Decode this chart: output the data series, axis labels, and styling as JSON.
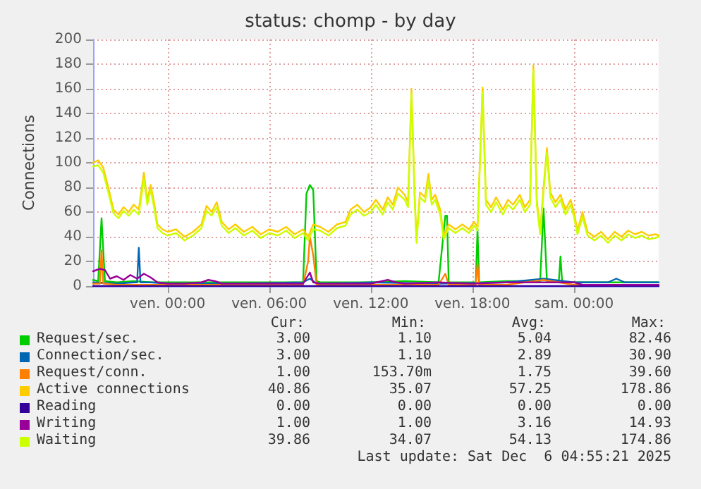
{
  "chart_data": {
    "type": "line",
    "title": "status: chomp - by day",
    "ylabel": "Connections",
    "xlim": [
      "2025-12-04T19:36",
      "2025-12-06T05:00"
    ],
    "xticks": [
      {
        "value": "2025-12-05T00:00",
        "label": "ven. 00:00"
      },
      {
        "value": "2025-12-05T06:00",
        "label": "ven. 06:00"
      },
      {
        "value": "2025-12-05T12:00",
        "label": "ven. 12:00"
      },
      {
        "value": "2025-12-05T18:00",
        "label": "ven. 18:00"
      },
      {
        "value": "2025-12-06T00:00",
        "label": "sam. 00:00"
      }
    ],
    "ylim": [
      0,
      200
    ],
    "yticks": [
      0,
      20,
      40,
      60,
      80,
      100,
      120,
      140,
      160,
      180,
      200
    ],
    "grid": true,
    "legend": "bottom",
    "x": [
      "2025-12-04T19:36",
      "2025-12-04T19:54",
      "2025-12-04T20:12",
      "2025-12-04T20:30",
      "2025-12-04T20:48",
      "2025-12-04T21:06",
      "2025-12-04T21:24",
      "2025-12-04T21:42",
      "2025-12-04T22:00",
      "2025-12-04T22:18",
      "2025-12-04T22:36",
      "2025-12-04T22:48",
      "2025-12-04T23:00",
      "2025-12-04T23:12",
      "2025-12-04T23:24",
      "2025-12-04T23:42",
      "2025-12-05T00:00",
      "2025-12-05T00:30",
      "2025-12-05T01:00",
      "2025-12-05T01:30",
      "2025-12-05T02:00",
      "2025-12-05T02:18",
      "2025-12-05T02:36",
      "2025-12-05T02:54",
      "2025-12-05T03:12",
      "2025-12-05T03:36",
      "2025-12-05T04:00",
      "2025-12-05T04:30",
      "2025-12-05T05:00",
      "2025-12-05T05:30",
      "2025-12-05T06:00",
      "2025-12-05T06:30",
      "2025-12-05T07:00",
      "2025-12-05T07:30",
      "2025-12-05T08:00",
      "2025-12-05T08:18",
      "2025-12-05T08:36",
      "2025-12-05T09:00",
      "2025-12-05T09:30",
      "2025-12-05T10:00",
      "2025-12-05T10:30",
      "2025-12-05T10:48",
      "2025-12-05T11:12",
      "2025-12-05T11:36",
      "2025-12-05T12:00",
      "2025-12-05T12:18",
      "2025-12-05T12:42",
      "2025-12-05T13:00",
      "2025-12-05T13:18",
      "2025-12-05T13:36",
      "2025-12-05T14:00",
      "2025-12-05T14:12",
      "2025-12-05T14:24",
      "2025-12-05T14:36",
      "2025-12-05T14:42",
      "2025-12-05T14:54",
      "2025-12-05T15:12",
      "2025-12-05T15:24",
      "2025-12-05T15:36",
      "2025-12-05T15:48",
      "2025-12-05T16:06",
      "2025-12-05T16:18",
      "2025-12-05T16:36",
      "2025-12-05T17:00",
      "2025-12-05T17:24",
      "2025-12-05T17:48",
      "2025-12-05T18:06",
      "2025-12-05T18:18",
      "2025-12-05T18:36",
      "2025-12-05T18:48",
      "2025-12-05T19:06",
      "2025-12-05T19:24",
      "2025-12-05T19:48",
      "2025-12-05T20:06",
      "2025-12-05T20:24",
      "2025-12-05T20:48",
      "2025-12-05T21:06",
      "2025-12-05T21:24",
      "2025-12-05T21:36",
      "2025-12-05T21:48",
      "2025-12-05T22:00",
      "2025-12-05T22:12",
      "2025-12-05T22:24",
      "2025-12-05T22:36",
      "2025-12-05T22:54",
      "2025-12-05T23:12",
      "2025-12-05T23:30",
      "2025-12-05T23:48",
      "2025-12-06T00:00",
      "2025-12-06T00:12",
      "2025-12-06T00:30",
      "2025-12-06T00:48",
      "2025-12-06T01:12",
      "2025-12-06T01:36",
      "2025-12-06T02:00",
      "2025-12-06T02:24",
      "2025-12-06T02:48",
      "2025-12-06T03:12",
      "2025-12-06T03:36",
      "2025-12-06T04:00",
      "2025-12-06T04:24",
      "2025-12-06T04:48",
      "2025-12-06T05:00"
    ],
    "series": [
      {
        "name": "Request/sec.",
        "color": "#00cc00",
        "x": [
          "2025-12-04T19:36",
          "2025-12-04T19:54",
          "2025-12-04T20:06",
          "2025-12-04T20:18",
          "2025-12-04T21:00",
          "2025-12-04T22:00",
          "2025-12-04T23:00",
          "2025-12-05T00:00",
          "2025-12-05T02:00",
          "2025-12-05T04:00",
          "2025-12-05T06:00",
          "2025-12-05T08:00",
          "2025-12-05T08:12",
          "2025-12-05T08:24",
          "2025-12-05T08:36",
          "2025-12-05T08:48",
          "2025-12-05T09:00",
          "2025-12-05T12:00",
          "2025-12-05T14:00",
          "2025-12-05T16:00",
          "2025-12-05T16:24",
          "2025-12-05T16:30",
          "2025-12-05T16:36",
          "2025-12-05T17:00",
          "2025-12-05T18:12",
          "2025-12-05T18:18",
          "2025-12-05T18:24",
          "2025-12-05T20:00",
          "2025-12-05T22:00",
          "2025-12-05T22:12",
          "2025-12-05T22:24",
          "2025-12-05T23:06",
          "2025-12-05T23:12",
          "2025-12-05T23:18",
          "2025-12-06T01:00",
          "2025-12-06T03:00",
          "2025-12-06T05:00"
        ],
        "values": [
          5,
          4,
          55,
          4,
          3,
          4,
          3,
          3,
          3,
          3,
          3,
          3,
          75,
          82,
          78,
          4,
          3,
          3,
          4,
          3,
          57,
          57,
          3,
          3,
          3,
          46,
          3,
          4,
          4,
          63,
          4,
          3,
          24,
          3,
          3,
          3,
          3
        ]
      },
      {
        "name": "Connection/sec.",
        "color": "#0066b3",
        "x": [
          "2025-12-04T19:36",
          "2025-12-04T21:00",
          "2025-12-04T22:00",
          "2025-12-04T22:12",
          "2025-12-04T22:18",
          "2025-12-04T22:24",
          "2025-12-04T23:00",
          "2025-12-05T00:00",
          "2025-12-05T04:00",
          "2025-12-05T08:00",
          "2025-12-05T08:24",
          "2025-12-05T08:48",
          "2025-12-05T12:00",
          "2025-12-05T16:00",
          "2025-12-05T20:00",
          "2025-12-05T22:12",
          "2025-12-06T00:00",
          "2025-12-06T02:00",
          "2025-12-06T02:30",
          "2025-12-06T03:00",
          "2025-12-06T05:00"
        ],
        "values": [
          3,
          2,
          3,
          3,
          31,
          3,
          3,
          2,
          2,
          3,
          6,
          2,
          3,
          2,
          3,
          6,
          3,
          3,
          6,
          3,
          3
        ]
      },
      {
        "name": "Request/conn.",
        "color": "#ff8000",
        "x": [
          "2025-12-04T19:36",
          "2025-12-04T20:00",
          "2025-12-04T20:06",
          "2025-12-04T20:12",
          "2025-12-04T21:00",
          "2025-12-05T00:00",
          "2025-12-05T04:00",
          "2025-12-05T08:00",
          "2025-12-05T08:18",
          "2025-12-05T08:24",
          "2025-12-05T08:36",
          "2025-12-05T08:48",
          "2025-12-05T12:00",
          "2025-12-05T16:00",
          "2025-12-05T16:24",
          "2025-12-05T16:36",
          "2025-12-05T18:00",
          "2025-12-05T18:12",
          "2025-12-05T18:18",
          "2025-12-05T18:24",
          "2025-12-05T20:00",
          "2025-12-05T22:12",
          "2025-12-06T00:00",
          "2025-12-06T05:00"
        ],
        "values": [
          2,
          2,
          29,
          2,
          1,
          1,
          1,
          1,
          20,
          40,
          25,
          1,
          1,
          1,
          10,
          1,
          1,
          1,
          18,
          1,
          1,
          5,
          1,
          1
        ]
      },
      {
        "name": "Active connections",
        "color": "#ffcc00",
        "values": [
          100,
          102,
          96,
          80,
          62,
          58,
          64,
          60,
          66,
          62,
          92,
          70,
          82,
          68,
          50,
          46,
          44,
          46,
          40,
          44,
          50,
          65,
          60,
          68,
          52,
          46,
          50,
          44,
          48,
          42,
          46,
          44,
          48,
          42,
          46,
          40,
          50,
          48,
          44,
          50,
          52,
          62,
          66,
          60,
          64,
          70,
          62,
          72,
          66,
          80,
          74,
          68,
          160,
          70,
          38,
          76,
          72,
          91,
          70,
          74,
          62,
          41,
          50,
          46,
          50,
          46,
          52,
          48,
          161,
          70,
          64,
          72,
          62,
          70,
          66,
          74,
          64,
          70,
          179,
          70,
          45,
          80,
          112,
          76,
          68,
          74,
          62,
          70,
          60,
          45,
          60,
          44,
          40,
          44,
          38,
          44,
          40,
          45,
          42,
          44,
          41,
          42,
          41
        ]
      },
      {
        "name": "Reading",
        "color": "#330099",
        "x": [
          "2025-12-04T19:36",
          "2025-12-06T05:00"
        ],
        "values": [
          0,
          0
        ]
      },
      {
        "name": "Writing",
        "color": "#990099",
        "x": [
          "2025-12-04T19:36",
          "2025-12-04T20:00",
          "2025-12-04T20:18",
          "2025-12-04T20:36",
          "2025-12-04T21:00",
          "2025-12-04T21:24",
          "2025-12-04T21:48",
          "2025-12-04T22:12",
          "2025-12-04T22:36",
          "2025-12-04T23:00",
          "2025-12-04T23:24",
          "2025-12-05T00:00",
          "2025-12-05T01:00",
          "2025-12-05T02:00",
          "2025-12-05T02:24",
          "2025-12-05T02:48",
          "2025-12-05T03:12",
          "2025-12-05T04:00",
          "2025-12-05T06:00",
          "2025-12-05T08:00",
          "2025-12-05T08:24",
          "2025-12-05T08:36",
          "2025-12-05T09:00",
          "2025-12-05T12:00",
          "2025-12-05T13:00",
          "2025-12-05T13:30",
          "2025-12-05T14:00",
          "2025-12-05T16:00",
          "2025-12-05T18:00",
          "2025-12-05T20:00",
          "2025-12-05T22:00",
          "2025-12-06T00:00",
          "2025-12-06T00:30",
          "2025-12-06T02:00",
          "2025-12-06T05:00"
        ],
        "values": [
          12,
          14,
          13,
          6,
          8,
          5,
          9,
          6,
          10,
          7,
          3,
          2,
          2,
          3,
          5,
          4,
          2,
          2,
          2,
          2,
          11,
          3,
          2,
          2,
          5,
          3,
          2,
          3,
          2,
          3,
          3,
          3,
          1,
          1,
          1
        ]
      },
      {
        "name": "Waiting",
        "color": "#ccff00",
        "values": [
          97,
          98,
          92,
          76,
          59,
          55,
          61,
          57,
          62,
          58,
          87,
          66,
          78,
          64,
          47,
          43,
          41,
          43,
          37,
          41,
          47,
          61,
          57,
          64,
          49,
          43,
          47,
          41,
          45,
          39,
          43,
          41,
          45,
          39,
          43,
          37,
          46,
          45,
          41,
          47,
          49,
          58,
          62,
          57,
          60,
          66,
          58,
          68,
          62,
          75,
          70,
          64,
          156,
          66,
          35,
          72,
          68,
          86,
          66,
          70,
          58,
          38,
          47,
          43,
          47,
          43,
          49,
          45,
          157,
          66,
          60,
          68,
          58,
          66,
          62,
          70,
          60,
          66,
          175,
          66,
          42,
          76,
          108,
          72,
          64,
          70,
          58,
          66,
          56,
          42,
          56,
          41,
          37,
          41,
          35,
          41,
          37,
          42,
          39,
          41,
          38,
          39,
          40
        ]
      }
    ],
    "annotations": [
      "Cur:",
      "Min:",
      "Avg:",
      "Max:",
      "3.00",
      "1.10",
      "5.04",
      "82.46",
      "3.00",
      "1.10",
      "2.89",
      "30.90",
      "1.00",
      "153.70m",
      "1.75",
      "39.60",
      "40.86",
      "35.07",
      "57.25",
      "178.86",
      "0.00",
      "0.00",
      "0.00",
      "0.00",
      "1.00",
      "1.00",
      "3.16",
      "14.93",
      "39.86",
      "34.07",
      "54.13",
      "174.86",
      "Last update: Sat Dec  6 04:55:21 2025"
    ]
  }
}
